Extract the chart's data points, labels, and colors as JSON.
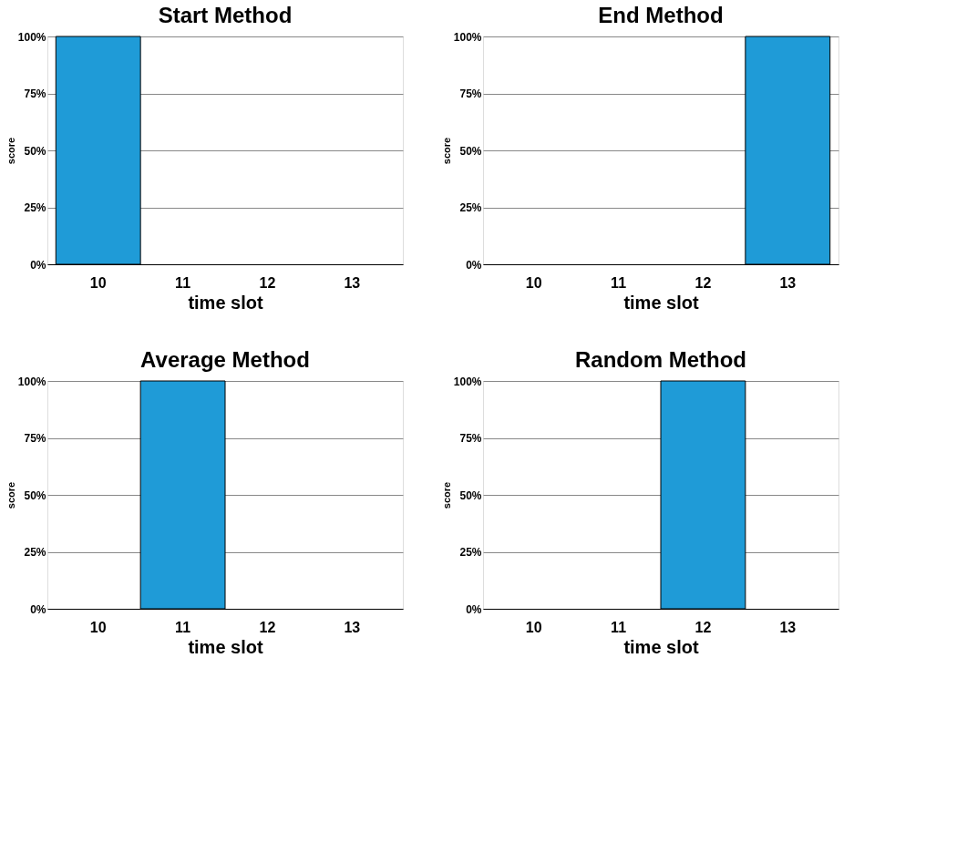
{
  "chart_data": [
    {
      "type": "bar",
      "title": "Start Method",
      "xlabel": "time slot",
      "ylabel": "score",
      "categories": [
        "10",
        "11",
        "12",
        "13"
      ],
      "values": [
        100,
        0,
        0,
        0
      ],
      "color": "#1f9bd7",
      "ylim": [
        0,
        100
      ],
      "yticks": [
        {
          "value": 0,
          "label": "0%"
        },
        {
          "value": 25,
          "label": "25%"
        },
        {
          "value": 50,
          "label": "50%"
        },
        {
          "value": 75,
          "label": "75%"
        },
        {
          "value": 100,
          "label": "100%"
        }
      ],
      "grid": "y"
    },
    {
      "type": "bar",
      "title": "End Method",
      "xlabel": "time slot",
      "ylabel": "score",
      "categories": [
        "10",
        "11",
        "12",
        "13"
      ],
      "values": [
        0,
        0,
        0,
        100
      ],
      "color": "#1f9bd7",
      "ylim": [
        0,
        100
      ],
      "yticks": [
        {
          "value": 0,
          "label": "0%"
        },
        {
          "value": 25,
          "label": "25%"
        },
        {
          "value": 50,
          "label": "50%"
        },
        {
          "value": 75,
          "label": "75%"
        },
        {
          "value": 100,
          "label": "100%"
        }
      ],
      "grid": "y"
    },
    {
      "type": "bar",
      "title": "Average Method",
      "xlabel": "time slot",
      "ylabel": "score",
      "categories": [
        "10",
        "11",
        "12",
        "13"
      ],
      "values": [
        0,
        100,
        0,
        0
      ],
      "color": "#1f9bd7",
      "ylim": [
        0,
        100
      ],
      "yticks": [
        {
          "value": 0,
          "label": "0%"
        },
        {
          "value": 25,
          "label": "25%"
        },
        {
          "value": 50,
          "label": "50%"
        },
        {
          "value": 75,
          "label": "75%"
        },
        {
          "value": 100,
          "label": "100%"
        }
      ],
      "grid": "y"
    },
    {
      "type": "bar",
      "title": "Random Method",
      "xlabel": "time slot",
      "ylabel": "score",
      "categories": [
        "10",
        "11",
        "12",
        "13"
      ],
      "values": [
        0,
        0,
        100,
        0
      ],
      "color": "#1f9bd7",
      "ylim": [
        0,
        100
      ],
      "yticks": [
        {
          "value": 0,
          "label": "0%"
        },
        {
          "value": 25,
          "label": "25%"
        },
        {
          "value": 50,
          "label": "50%"
        },
        {
          "value": 75,
          "label": "75%"
        },
        {
          "value": 100,
          "label": "100%"
        }
      ],
      "grid": "y"
    }
  ]
}
